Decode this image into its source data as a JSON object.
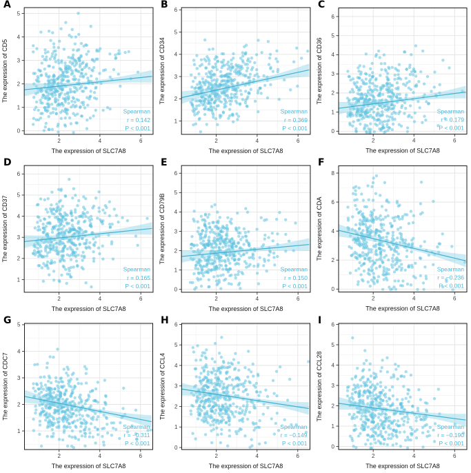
{
  "figure": {
    "background": "#ffffff",
    "xlabel": "The expression of SLC7A8",
    "method_label": "Spearman",
    "x_ticks": [
      2,
      4,
      6
    ],
    "x_minor_ticks": [
      1,
      3,
      5
    ],
    "xlim": [
      0.3,
      6.6
    ]
  },
  "colors": {
    "point": "#62c3e0",
    "point_opacity": 0.55,
    "trend_line": "#41aecf",
    "band": "#8fd4e8",
    "band_opacity": 0.45,
    "annotation_text": "#4cb9da",
    "grid_major": "#e3e3e3",
    "grid_minor": "#f1f1f1",
    "panel_border": "#1a1a1a",
    "tick_text": "#404040",
    "axis_title": "#111111"
  },
  "chart_data": [
    {
      "type": "scatter",
      "letter": "A",
      "gene": "CD5",
      "ylabel": "The expression of CD5",
      "xlabel": "The expression of SLC7A8",
      "method": "Spearman",
      "r": 0.142,
      "r_label": "r = 0.142",
      "p_label": "P < 0.001",
      "ylim": [
        -0.15,
        5.25
      ],
      "y_ticks": [
        0,
        1,
        2,
        3,
        4,
        5
      ],
      "trend": {
        "x": [
          0.3,
          6.55
        ],
        "y": [
          1.75,
          2.32
        ]
      },
      "n_points": 430,
      "y_center": 2.05,
      "y_sd": 0.95,
      "seed": 101
    },
    {
      "type": "scatter",
      "letter": "B",
      "gene": "CD34",
      "ylabel": "The expression of CD34",
      "xlabel": "The expression of SLC7A8",
      "method": "Spearman",
      "r": 0.369,
      "r_label": "r = 0.369",
      "p_label": "P < 0.001",
      "ylim": [
        0.4,
        6.1
      ],
      "y_ticks": [
        1,
        2,
        3,
        4,
        5,
        6
      ],
      "trend": {
        "x": [
          0.3,
          6.55
        ],
        "y": [
          2.05,
          3.3
        ]
      },
      "n_points": 430,
      "y_center": 2.62,
      "y_sd": 0.8,
      "seed": 202
    },
    {
      "type": "scatter",
      "letter": "C",
      "gene": "CD36",
      "ylabel": "The expression of CD36",
      "xlabel": "The expression of SLC7A8",
      "method": "Spearman",
      "r": 0.179,
      "r_label": "r = 0.179",
      "p_label": "P < 0.001",
      "ylim": [
        -0.15,
        6.45
      ],
      "y_ticks": [
        0,
        1,
        2,
        3,
        4,
        5,
        6
      ],
      "trend": {
        "x": [
          0.3,
          6.55
        ],
        "y": [
          1.2,
          2.05
        ]
      },
      "n_points": 430,
      "y_center": 1.55,
      "y_sd": 1.1,
      "seed": 303
    },
    {
      "type": "scatter",
      "letter": "D",
      "gene": "CD37",
      "ylabel": "The expression of CD37",
      "xlabel": "The expression of SLC7A8",
      "method": "Spearman",
      "r": 0.165,
      "r_label": "r = 0.165",
      "p_label": "P < 0.001",
      "ylim": [
        0.4,
        6.4
      ],
      "y_ticks": [
        1,
        2,
        3,
        4,
        5,
        6
      ],
      "trend": {
        "x": [
          0.3,
          6.55
        ],
        "y": [
          2.8,
          3.42
        ]
      },
      "n_points": 430,
      "y_center": 3.1,
      "y_sd": 0.95,
      "seed": 404
    },
    {
      "type": "scatter",
      "letter": "E",
      "gene": "CD79B",
      "ylabel": "The expression of CD79B",
      "xlabel": "The expression of SLC7A8",
      "method": "Spearman",
      "r": 0.15,
      "r_label": "r = 0.150",
      "p_label": "P < 0.001",
      "ylim": [
        -0.15,
        6.4
      ],
      "y_ticks": [
        0,
        1,
        2,
        3,
        4,
        5,
        6
      ],
      "trend": {
        "x": [
          0.3,
          6.55
        ],
        "y": [
          1.7,
          2.32
        ]
      },
      "n_points": 430,
      "y_center": 2.0,
      "y_sd": 1.0,
      "seed": 505
    },
    {
      "type": "scatter",
      "letter": "F",
      "gene": "CDA",
      "ylabel": "The expression of CDA",
      "xlabel": "The expression of SLC7A8",
      "method": "Spearman",
      "r": -0.236,
      "r_label": "r = −0.236",
      "p_label": "P < 0.001",
      "ylim": [
        -0.2,
        8.5
      ],
      "y_ticks": [
        0,
        2,
        4,
        6,
        8
      ],
      "trend": {
        "x": [
          0.3,
          6.55
        ],
        "y": [
          4.05,
          1.95
        ]
      },
      "n_points": 430,
      "y_center": 3.0,
      "y_sd": 1.85,
      "seed": 606
    },
    {
      "type": "scatter",
      "letter": "G",
      "gene": "CDC7",
      "ylabel": "The expression of CDC7",
      "xlabel": "The expression of SLC7A8",
      "method": "Spearman",
      "r": -0.311,
      "r_label": "r = −0.311",
      "p_label": "P < 0.001",
      "ylim": [
        0.3,
        5.05
      ],
      "y_ticks": [
        1,
        2,
        3,
        4,
        5
      ],
      "trend": {
        "x": [
          0.3,
          6.55
        ],
        "y": [
          2.3,
          1.35
        ]
      },
      "n_points": 430,
      "y_center": 1.88,
      "y_sd": 0.73,
      "seed": 707
    },
    {
      "type": "scatter",
      "letter": "H",
      "gene": "CCL4",
      "ylabel": "The expression of CCL4",
      "xlabel": "The expression of SLC7A8",
      "method": "Spearman",
      "r": -0.149,
      "r_label": "r = −0.149",
      "p_label": "P < 0.001",
      "ylim": [
        -0.1,
        6.05
      ],
      "y_ticks": [
        0,
        1,
        2,
        3,
        4,
        5,
        6
      ],
      "trend": {
        "x": [
          0.3,
          6.55
        ],
        "y": [
          2.85,
          1.9
        ]
      },
      "n_points": 430,
      "y_center": 2.5,
      "y_sd": 1.05,
      "seed": 808
    },
    {
      "type": "scatter",
      "letter": "I",
      "gene": "CCL28",
      "ylabel": "The expression of CCL28",
      "xlabel": "The expression of SLC7A8",
      "method": "Spearman",
      "r": -0.19,
      "r_label": "r = −0.190",
      "p_label": "P < 0.001",
      "ylim": [
        -0.15,
        6.05
      ],
      "y_ticks": [
        0,
        1,
        2,
        3,
        4,
        5,
        6
      ],
      "trend": {
        "x": [
          0.3,
          6.55
        ],
        "y": [
          2.12,
          1.3
        ]
      },
      "n_points": 430,
      "y_center": 1.72,
      "y_sd": 1.05,
      "seed": 909
    }
  ]
}
